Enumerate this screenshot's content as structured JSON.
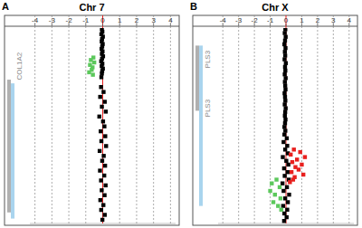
{
  "chart_data": [
    {
      "type": "scatter",
      "subtitle": "A",
      "title": "Chr 7",
      "xlim": [
        -4.3,
        4.3
      ],
      "xticks": [
        -4,
        -3,
        -2,
        -1,
        0,
        1,
        2,
        3,
        4
      ],
      "ylim": [
        0,
        159
      ],
      "grid": true,
      "tick_labels": "x",
      "marker": "square",
      "regions": [
        {
          "start": 42,
          "end": 150,
          "color": "#b0b0b0"
        },
        {
          "start": 45,
          "end": 155,
          "color": "#a9d4ee"
        }
      ],
      "annotations": [
        {
          "text": "COL1A2",
          "y": 31
        }
      ],
      "series": [
        {
          "color": "#000000",
          "x": [
            -0.05,
            -0.02,
            -0.08,
            0.01,
            -0.04,
            -0.06,
            0.0,
            -0.03,
            -0.07,
            -0.01,
            -0.05,
            0.02,
            -0.04,
            -0.09,
            -0.02,
            -0.06,
            0.01,
            -0.03,
            -0.05,
            -0.08,
            -0.1,
            0.05,
            -0.15,
            0.12,
            -0.05,
            0.18,
            -0.2,
            0.02,
            0.1,
            -0.12,
            0.15,
            -0.08,
            0.2,
            -0.18,
            0.06,
            -0.03,
            0.14,
            -0.16,
            0.09,
            -0.1,
            0.17,
            -0.06,
            0.11,
            -0.14,
            0.04,
            -0.09,
            0.12,
            -0.02
          ],
          "values": [
            1,
            3,
            5,
            7,
            9,
            11,
            13,
            15,
            17,
            19,
            21,
            23,
            25,
            27,
            29,
            31,
            33,
            35,
            37,
            40,
            48,
            52,
            56,
            60,
            64,
            68,
            72,
            76,
            80,
            84,
            88,
            92,
            96,
            100,
            104,
            108,
            112,
            116,
            120,
            124,
            128,
            132,
            136,
            140,
            144,
            148,
            152,
            156
          ]
        },
        {
          "color": "#5cc85c",
          "x": [
            -0.55,
            -0.7,
            -0.5,
            -0.75,
            -0.6,
            -0.65,
            -0.8,
            -0.58
          ],
          "values": [
            24,
            26,
            28,
            30,
            32,
            34,
            36,
            38
          ]
        }
      ]
    },
    {
      "type": "scatter",
      "subtitle": "B",
      "title": "Chr X",
      "xlim": [
        -4.3,
        4.3
      ],
      "xticks": [
        -4,
        -3,
        -2,
        -1,
        0,
        1,
        2,
        3,
        4
      ],
      "ylim": [
        0,
        156
      ],
      "grid": true,
      "tick_labels": "x",
      "marker": "square",
      "regions": [
        {
          "start": 14,
          "end": 66,
          "color": "#b0b0b0"
        },
        {
          "start": 14,
          "end": 142,
          "color": "#a9d4ee"
        }
      ],
      "annotations": [
        {
          "text": "PLS3",
          "y": 25
        },
        {
          "text": "PLS3",
          "y": 64
        }
      ],
      "series": [
        {
          "color": "#000000",
          "x": [
            -0.04,
            -0.08,
            -0.02,
            -0.06,
            -0.1,
            -0.03,
            -0.07,
            -0.05,
            -0.09,
            -0.01,
            -0.06,
            -0.04,
            -0.08,
            -0.02,
            -0.07,
            -0.05,
            -0.03,
            -0.09,
            -0.06,
            -0.04,
            -0.08,
            -0.02,
            -0.05,
            -0.07,
            -0.03,
            -0.06,
            -0.1,
            -0.04,
            -0.1,
            0.05,
            -0.15,
            0.08,
            -0.05,
            0.12,
            -0.2,
            0.02,
            0.15,
            -0.12,
            0.1,
            -0.08,
            0.18,
            -0.22,
            0.06,
            -0.15,
            0.2,
            -0.05,
            0.12,
            -0.18,
            0.08,
            -0.1,
            0.04,
            -0.12
          ],
          "values": [
            1,
            4,
            7,
            10,
            13,
            16,
            19,
            22,
            25,
            28,
            31,
            34,
            37,
            40,
            43,
            46,
            49,
            52,
            55,
            58,
            61,
            64,
            67,
            70,
            73,
            76,
            79,
            82,
            85,
            88,
            91,
            94,
            97,
            100,
            103,
            106,
            109,
            112,
            115,
            118,
            121,
            124,
            127,
            130,
            133,
            136,
            139,
            142,
            145,
            148,
            151,
            154
          ]
        },
        {
          "color": "#e8201e",
          "x": [
            0.5,
            0.9,
            0.3,
            1.2,
            0.7,
            0.4,
            1.0,
            0.6,
            0.8,
            0.35,
            1.1,
            0.55,
            0.45,
            0.25
          ],
          "values": [
            97,
            99,
            101,
            103,
            105,
            107,
            109,
            111,
            113,
            115,
            117,
            119,
            121,
            123
          ]
        },
        {
          "color": "#5cc85c",
          "x": [
            -0.6,
            -0.9,
            -0.4,
            -1.0,
            -0.7,
            -0.35,
            -0.8,
            -0.5,
            -0.3
          ],
          "values": [
            121,
            124,
            127,
            130,
            133,
            136,
            139,
            142,
            145
          ]
        }
      ]
    }
  ]
}
